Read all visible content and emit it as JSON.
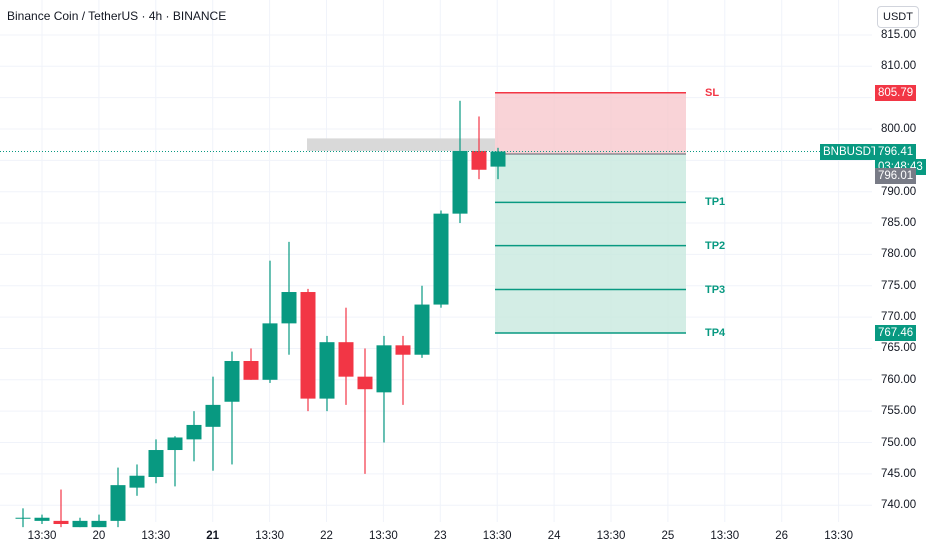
{
  "header": {
    "title": "Binance Coin / TetherUS · 4h · BINANCE",
    "currency_button": "USDT"
  },
  "colors": {
    "up": "#089981",
    "down": "#f23645",
    "sl_zone": "#f7c4c9",
    "tp_zone": "#c8e9df",
    "grid": "#f0f3fa",
    "grey_box": "#d9d9d9",
    "price_tag_grey": "#787b86"
  },
  "price_tags": {
    "symbol": "BNBUSDT",
    "last_price": "796.41",
    "countdown": "03:48:43",
    "prev_price": "796.01",
    "sl_price": "805.79",
    "tp4_price": "767.46"
  },
  "zone_labels": {
    "sl": "SL",
    "tp1": "TP1",
    "tp2": "TP2",
    "tp3": "TP3",
    "tp4": "TP4"
  },
  "chart_data": {
    "type": "candlestick",
    "title": "Binance Coin / TetherUS · 4h · BINANCE",
    "ylim": [
      736.5,
      816.5
    ],
    "y_ticks": [
      "740.00",
      "745.00",
      "750.00",
      "755.00",
      "760.00",
      "765.00",
      "770.00",
      "775.00",
      "780.00",
      "785.00",
      "790.00",
      "795.00",
      "800.00",
      "805.00",
      "810.00",
      "815.00"
    ],
    "x_ticks": [
      {
        "label": "13:30",
        "bold": false
      },
      {
        "label": "20",
        "bold": false
      },
      {
        "label": "13:30",
        "bold": false
      },
      {
        "label": "21",
        "bold": true
      },
      {
        "label": "13:30",
        "bold": false
      },
      {
        "label": "22",
        "bold": false
      },
      {
        "label": "13:30",
        "bold": false
      },
      {
        "label": "23",
        "bold": false
      },
      {
        "label": "13:30",
        "bold": false
      },
      {
        "label": "24",
        "bold": false
      },
      {
        "label": "13:30",
        "bold": false
      },
      {
        "label": "25",
        "bold": false
      },
      {
        "label": "13:30",
        "bold": false
      },
      {
        "label": "26",
        "bold": false
      },
      {
        "label": "13:30",
        "bold": false
      }
    ],
    "candles": [
      {
        "o": 738.0,
        "h": 739.5,
        "l": 736.5,
        "c": 738.0
      },
      {
        "o": 737.5,
        "h": 738.5,
        "l": 737.0,
        "c": 738.0
      },
      {
        "o": 737.5,
        "h": 742.5,
        "l": 736.5,
        "c": 737.0
      },
      {
        "o": 736.5,
        "h": 738.0,
        "l": 736.5,
        "c": 737.5
      },
      {
        "o": 736.5,
        "h": 738.5,
        "l": 736.5,
        "c": 737.5
      },
      {
        "o": 737.5,
        "h": 746.0,
        "l": 736.5,
        "c": 743.2
      },
      {
        "o": 742.8,
        "h": 746.5,
        "l": 741.5,
        "c": 744.7
      },
      {
        "o": 744.5,
        "h": 750.5,
        "l": 743.5,
        "c": 748.8
      },
      {
        "o": 748.8,
        "h": 751.0,
        "l": 743.0,
        "c": 750.8
      },
      {
        "o": 750.5,
        "h": 755.0,
        "l": 747.0,
        "c": 752.8
      },
      {
        "o": 752.5,
        "h": 760.5,
        "l": 745.5,
        "c": 756.0
      },
      {
        "o": 756.5,
        "h": 764.5,
        "l": 746.5,
        "c": 763.0
      },
      {
        "o": 763.0,
        "h": 765.0,
        "l": 760.0,
        "c": 760.0
      },
      {
        "o": 760.0,
        "h": 779.0,
        "l": 759.5,
        "c": 769.0
      },
      {
        "o": 769.0,
        "h": 782.0,
        "l": 764.0,
        "c": 774.0
      },
      {
        "o": 774.0,
        "h": 774.5,
        "l": 755.0,
        "c": 757.0
      },
      {
        "o": 757.0,
        "h": 767.0,
        "l": 755.0,
        "c": 766.0
      },
      {
        "o": 766.0,
        "h": 771.5,
        "l": 756.0,
        "c": 760.5
      },
      {
        "o": 760.5,
        "h": 765.0,
        "l": 745.0,
        "c": 758.5
      },
      {
        "o": 758.0,
        "h": 767.0,
        "l": 750.0,
        "c": 765.5
      },
      {
        "o": 765.5,
        "h": 767.0,
        "l": 756.0,
        "c": 764.0
      },
      {
        "o": 764.0,
        "h": 775.0,
        "l": 763.5,
        "c": 772.0
      },
      {
        "o": 772.0,
        "h": 787.0,
        "l": 771.5,
        "c": 786.5
      },
      {
        "o": 786.5,
        "h": 804.5,
        "l": 785.0,
        "c": 796.5
      },
      {
        "o": 796.5,
        "h": 802.0,
        "l": 792.0,
        "c": 793.5
      },
      {
        "o": 794.0,
        "h": 797.0,
        "l": 792.0,
        "c": 796.41
      }
    ],
    "resistance_zone": {
      "top": 798.5,
      "bottom": 796.5
    },
    "levels": {
      "sl": 805.79,
      "entry": 796.01,
      "tp1": 788.3,
      "tp2": 781.4,
      "tp3": 774.4,
      "tp4": 767.46
    },
    "last_price": 796.41
  }
}
